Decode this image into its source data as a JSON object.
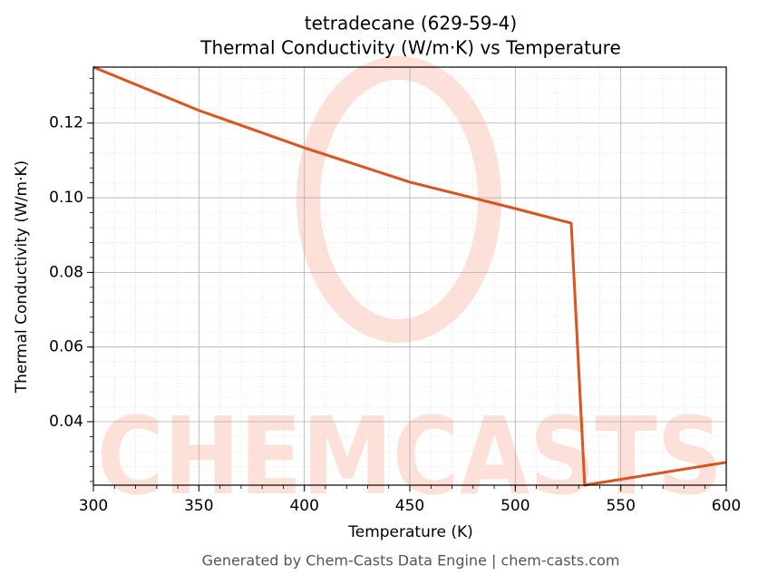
{
  "chart_data": {
    "type": "line",
    "title": "tetradecane (629-59-4)",
    "subtitle": "Thermal Conductivity (W/m·K) vs Temperature",
    "x_label": "Temperature (K)",
    "y_label": "Thermal Conductivity (W/m·K)",
    "watermark": "CHEMCASTS",
    "footer": "Generated by Chem-Casts Data Engine | chem-casts.com",
    "x": [
      300,
      350,
      400,
      450,
      500,
      526.5,
      532.9,
      600
    ],
    "series": [
      {
        "name": "Thermal Conductivity",
        "color": "#d9541e",
        "values": [
          0.135,
          0.1234,
          0.1134,
          0.1042,
          0.0971,
          0.0932,
          0.023,
          0.0291
        ]
      }
    ],
    "xlim": [
      300,
      600
    ],
    "xticks": [
      300,
      350,
      400,
      450,
      500,
      550,
      600
    ],
    "ylim": [
      0.023,
      0.135
    ],
    "yticks": [
      0.04,
      0.06,
      0.08,
      {
        "value": 0.1,
        "label": "0.10"
      },
      0.12
    ],
    "grid": true
  }
}
